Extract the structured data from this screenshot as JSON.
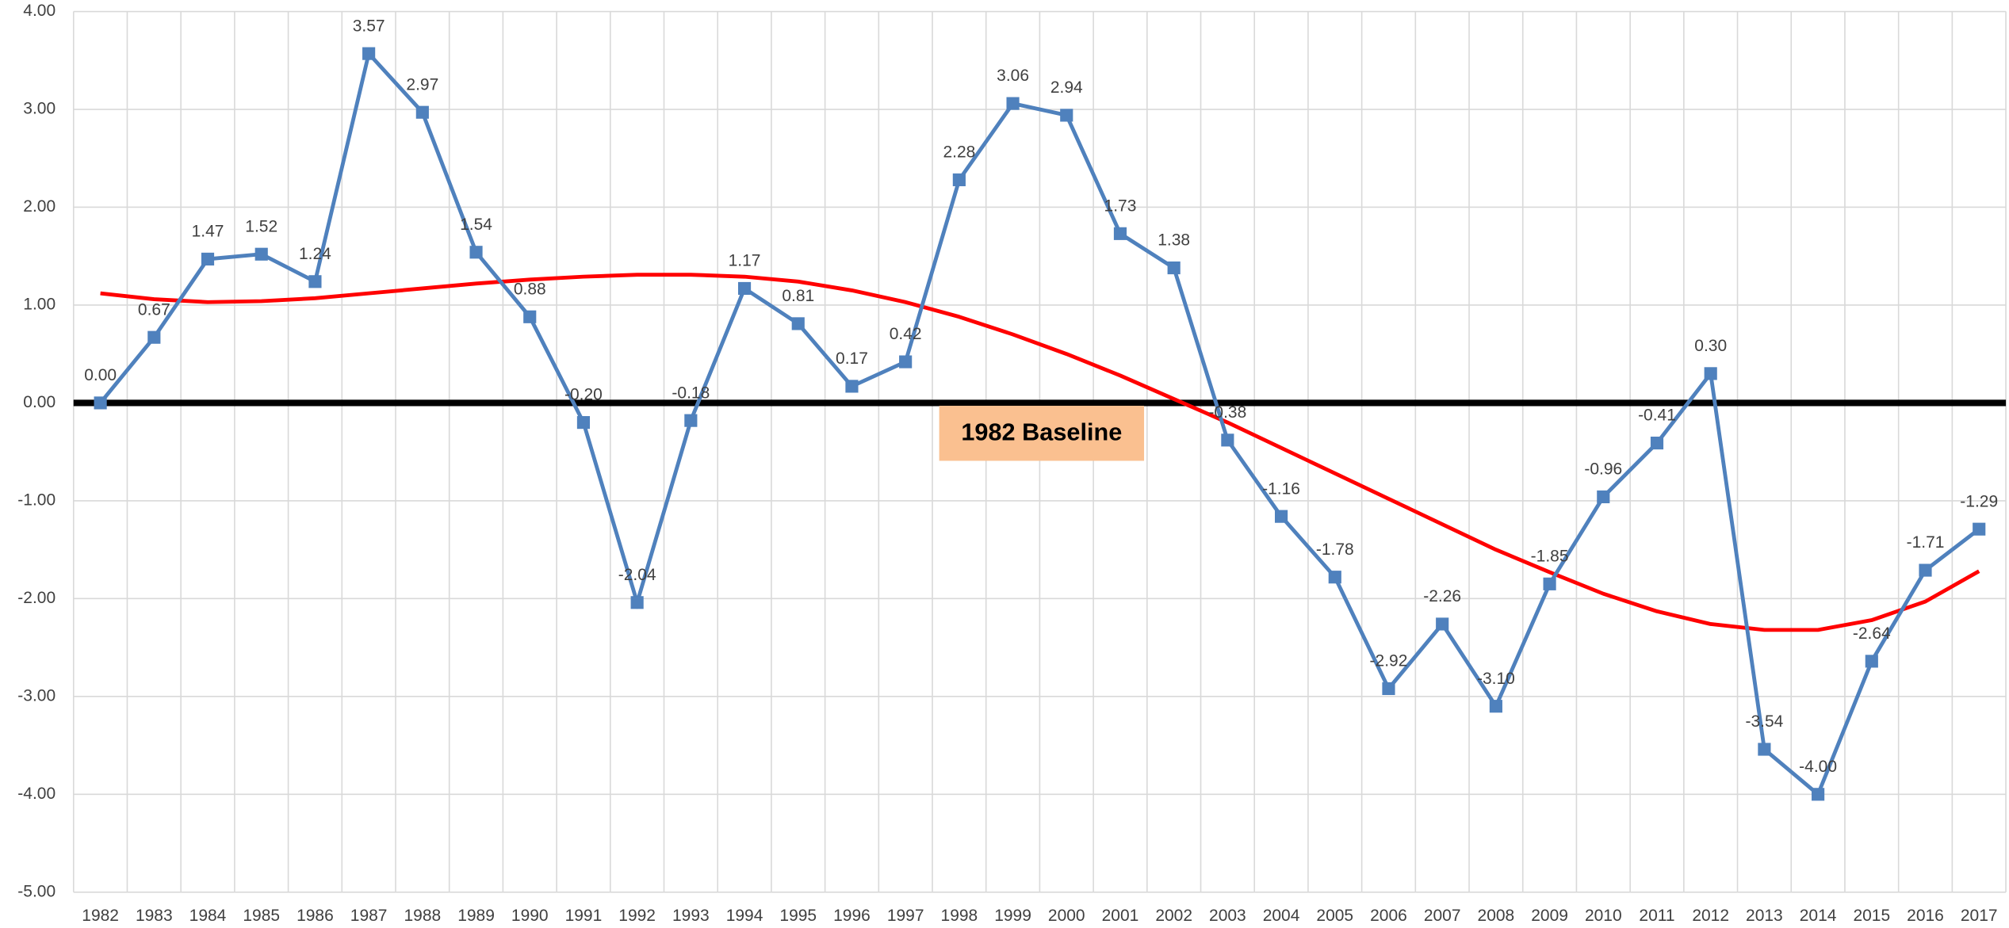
{
  "chart_data": {
    "type": "line",
    "annotation": "1982 Baseline",
    "categories": [
      "1982",
      "1983",
      "1984",
      "1985",
      "1986",
      "1987",
      "1988",
      "1989",
      "1990",
      "1991",
      "1992",
      "1993",
      "1994",
      "1995",
      "1996",
      "1997",
      "1998",
      "1999",
      "2000",
      "2001",
      "2002",
      "2003",
      "2004",
      "2005",
      "2006",
      "2007",
      "2008",
      "2009",
      "2010",
      "2011",
      "2012",
      "2013",
      "2014",
      "2015",
      "2016",
      "2017"
    ],
    "series": [
      {
        "color": "#4f81bd",
        "values": [
          0.0,
          0.67,
          1.47,
          1.52,
          1.24,
          3.57,
          2.97,
          1.54,
          0.88,
          -0.2,
          -2.04,
          -0.18,
          1.17,
          0.81,
          0.17,
          0.42,
          2.28,
          3.06,
          2.94,
          1.73,
          1.38,
          -0.38,
          -1.16,
          -1.78,
          -2.92,
          -2.26,
          -3.1,
          -1.85,
          -0.96,
          -0.41,
          0.3,
          -3.54,
          -4.0,
          -2.64,
          -1.71,
          -1.29
        ],
        "value_labels": [
          "0.00",
          "0.67",
          "1.47",
          "1.52",
          "1.24",
          "3.57",
          "2.97",
          "1.54",
          "0.88",
          "-0.20",
          "-2.04",
          "-0.18",
          "1.17",
          "0.81",
          "0.17",
          "0.42",
          "2.28",
          "3.06",
          "2.94",
          "1.73",
          "1.38",
          "-0.38",
          "-1.16",
          "-1.78",
          "-2.92",
          "-2.26",
          "-3.10",
          "-1.85",
          "-0.96",
          "-0.41",
          "0.30",
          "-3.54",
          "-4.00",
          "-2.64",
          "-1.71",
          "-1.29"
        ]
      }
    ],
    "trendline": {
      "color": "#ff0000",
      "values": [
        1.12,
        1.06,
        1.03,
        1.04,
        1.07,
        1.12,
        1.17,
        1.22,
        1.26,
        1.29,
        1.31,
        1.31,
        1.29,
        1.24,
        1.15,
        1.03,
        0.88,
        0.7,
        0.5,
        0.28,
        0.04,
        -0.2,
        -0.46,
        -0.72,
        -0.98,
        -1.24,
        -1.5,
        -1.73,
        -1.95,
        -2.13,
        -2.26,
        -2.32,
        -2.32,
        -2.22,
        -2.03,
        -1.72
      ]
    },
    "ylim": [
      -5,
      4
    ],
    "yticks": [
      {
        "value": -5,
        "label": "-5.00"
      },
      {
        "value": -4,
        "label": "-4.00"
      },
      {
        "value": -3,
        "label": "-3.00"
      },
      {
        "value": -2,
        "label": "-2.00"
      },
      {
        "value": -1,
        "label": "-1.00"
      },
      {
        "value": 0,
        "label": "0.00"
      },
      {
        "value": 1,
        "label": "1.00"
      },
      {
        "value": 2,
        "label": "2.00"
      },
      {
        "value": 3,
        "label": "3.00"
      },
      {
        "value": 4,
        "label": "4.00"
      }
    ],
    "grid": true
  }
}
